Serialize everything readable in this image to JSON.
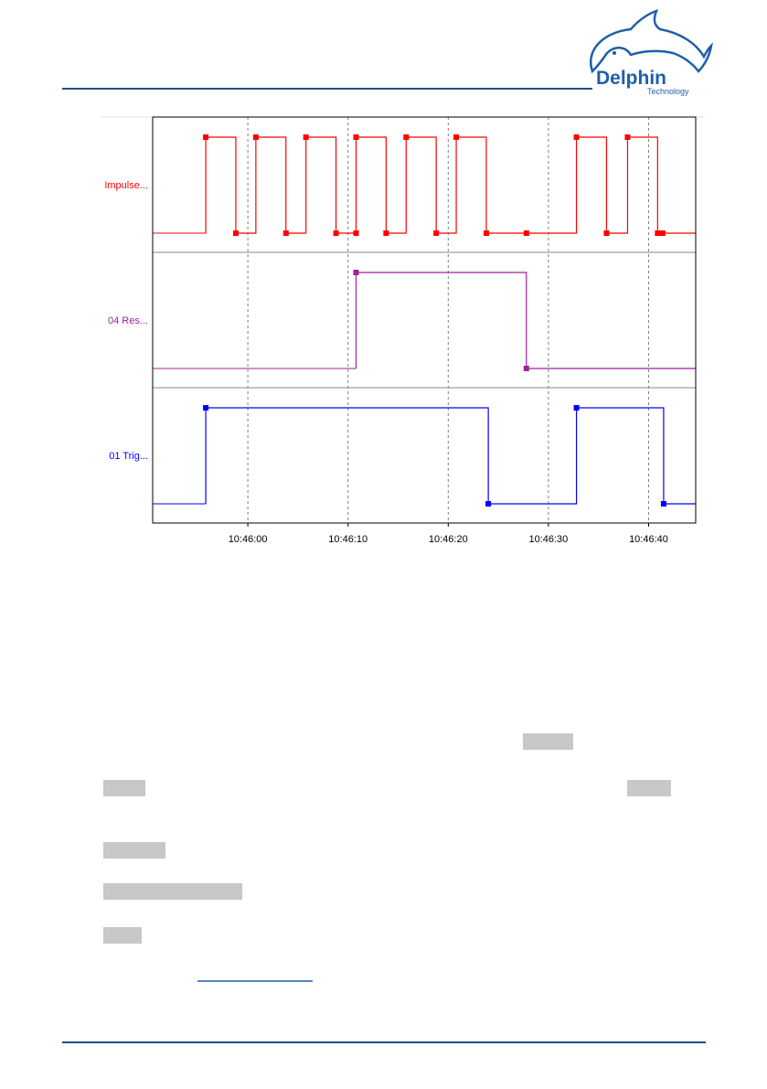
{
  "header": {
    "logo": "Delphin",
    "logo_sub": "Technology"
  },
  "chart_data": {
    "type": "step",
    "xlim": [
      38750.5,
      38804.7
    ],
    "xticks": [
      {
        "value": 38760,
        "label": "10:46:00"
      },
      {
        "value": 38770,
        "label": "10:46:10"
      },
      {
        "value": 38780,
        "label": "10:46:20"
      },
      {
        "value": 38790,
        "label": "10:46:30"
      },
      {
        "value": 38800,
        "label": "10:46:40"
      }
    ],
    "ylim": [
      0,
      1
    ],
    "grid": true,
    "series": [
      {
        "name": "Impulse...",
        "color": "#ff0000",
        "x": [
          38755.8,
          38758.8,
          38760.8,
          38763.8,
          38765.8,
          38768.8,
          38770.8,
          38770.8,
          38773.8,
          38775.8,
          38778.8,
          38780.8,
          38783.8,
          38787.8,
          38792.8,
          38795.8,
          38797.9,
          38800.9,
          38801.4
        ],
        "values": [
          1,
          0,
          1,
          0,
          1,
          0,
          0,
          1,
          0,
          1,
          0,
          1,
          0,
          0,
          1,
          0,
          1,
          0,
          0
        ]
      },
      {
        "name": "04 Res...",
        "color": "#a020a0",
        "x": [
          38770.8,
          38787.8
        ],
        "values": [
          1,
          0
        ]
      },
      {
        "name": "01 Trig...",
        "color": "#0000ff",
        "x": [
          38755.8,
          38784.0,
          38792.8,
          38801.5
        ],
        "values": [
          1,
          0,
          1,
          0
        ]
      }
    ]
  }
}
